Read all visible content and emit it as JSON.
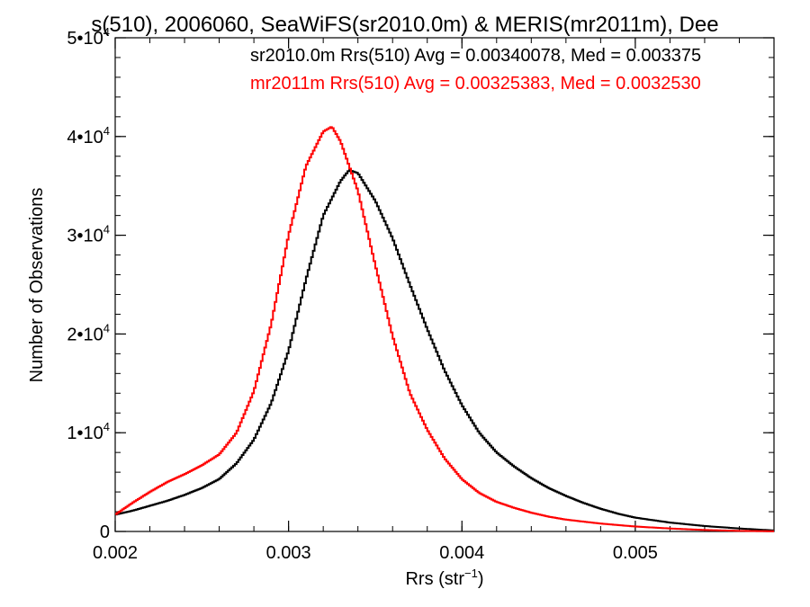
{
  "chart_data": {
    "type": "line",
    "title": "s(510), 2006060, SeaWiFS(sr2010.0m) & MERIS(mr2011m), Dee",
    "xlabel_main": "Rrs (str",
    "xlabel_sup": "−1",
    "xlabel_close": ")",
    "ylabel": "Number of Observations",
    "xlim": [
      0.002,
      0.0058
    ],
    "ylim": [
      0,
      50000
    ],
    "xticks": [
      {
        "value": 0.002,
        "label": "0.002"
      },
      {
        "value": 0.003,
        "label": "0.003"
      },
      {
        "value": 0.004,
        "label": "0.004"
      },
      {
        "value": 0.005,
        "label": "0.005"
      }
    ],
    "yticks": [
      {
        "value": 0,
        "label": "0",
        "sup": ""
      },
      {
        "value": 10000,
        "label": "1•10",
        "sup": "4"
      },
      {
        "value": 20000,
        "label": "2•10",
        "sup": "4"
      },
      {
        "value": 30000,
        "label": "3•10",
        "sup": "4"
      },
      {
        "value": 40000,
        "label": "4•10",
        "sup": "4"
      },
      {
        "value": 50000,
        "label": "5•10",
        "sup": "4"
      }
    ],
    "legend": [
      {
        "text": "sr2010.0m Rrs(510) Avg = 0.00340078, Med = 0.003375",
        "color": "#000000"
      },
      {
        "text": "mr2011m Rrs(510) Avg = 0.00325383, Med = 0.0032530",
        "color": "#ff0000"
      }
    ],
    "legend_position": "top-right",
    "series": [
      {
        "color": "#000000",
        "x": [
          0.002,
          0.0021,
          0.0022,
          0.0023,
          0.0024,
          0.0025,
          0.0026,
          0.0027,
          0.0028,
          0.0029,
          0.003,
          0.0031,
          0.0032,
          0.0033,
          0.00335,
          0.0034,
          0.0035,
          0.0036,
          0.0037,
          0.0038,
          0.0039,
          0.004,
          0.0041,
          0.0042,
          0.0043,
          0.0044,
          0.0045,
          0.0046,
          0.0047,
          0.0048,
          0.0049,
          0.005,
          0.0052,
          0.0054,
          0.0056,
          0.0058
        ],
        "values": [
          1700,
          2100,
          2600,
          3100,
          3700,
          4400,
          5300,
          6900,
          9300,
          13000,
          18300,
          25500,
          32000,
          35500,
          36600,
          36300,
          33500,
          29700,
          25000,
          20500,
          16300,
          12800,
          10000,
          8000,
          6600,
          5400,
          4400,
          3600,
          2900,
          2300,
          1800,
          1400,
          900,
          550,
          300,
          100
        ]
      },
      {
        "color": "#ff0000",
        "x": [
          0.002,
          0.0021,
          0.0022,
          0.0023,
          0.0024,
          0.0025,
          0.0026,
          0.0027,
          0.0028,
          0.0029,
          0.003,
          0.0031,
          0.0032,
          0.00325,
          0.0033,
          0.0034,
          0.0035,
          0.0036,
          0.0037,
          0.0038,
          0.0039,
          0.004,
          0.0041,
          0.0042,
          0.0043,
          0.0044,
          0.0045,
          0.0046,
          0.0047,
          0.0048,
          0.0049,
          0.005,
          0.0052,
          0.0054,
          0.0056,
          0.0058
        ],
        "values": [
          1700,
          2900,
          4000,
          5000,
          5800,
          6700,
          7800,
          10000,
          14200,
          21000,
          30000,
          37000,
          40500,
          41000,
          39500,
          34500,
          27000,
          19800,
          14000,
          10300,
          7400,
          5300,
          3900,
          3000,
          2400,
          1900,
          1500,
          1200,
          1000,
          800,
          650,
          500,
          300,
          150,
          60,
          20
        ]
      }
    ]
  }
}
